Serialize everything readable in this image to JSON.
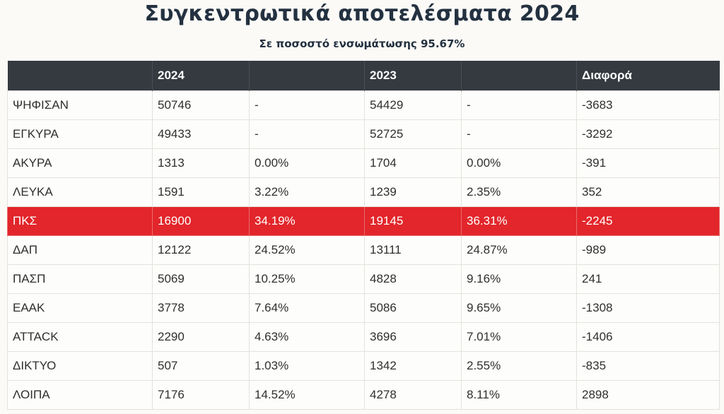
{
  "title": "Συγκεντρωτικά αποτελέσματα 2024",
  "subtitle": "Σε ποσοστό ενσωμάτωσης 95.67%",
  "colors": {
    "header_bg": "#353a40",
    "highlight": "#e2262b",
    "title_color": "#233140"
  },
  "table": {
    "headers": [
      "",
      "2024",
      "",
      "2023",
      "",
      "Διαφορά"
    ],
    "rows": [
      [
        "ΨΗΦΙΣΑΝ",
        "50746",
        "-",
        "54429",
        "-",
        "-3683"
      ],
      [
        "ΕΓΚΥΡΑ",
        "49433",
        "-",
        "52725",
        "-",
        "-3292"
      ],
      [
        "ΑΚΥΡΑ",
        "1313",
        "0.00%",
        "1704",
        "0.00%",
        "-391"
      ],
      [
        "ΛΕΥΚΑ",
        "1591",
        "3.22%",
        "1239",
        "2.35%",
        "352"
      ],
      [
        "ΠΚΣ",
        "16900",
        "34.19%",
        "19145",
        "36.31%",
        "-2245"
      ],
      [
        "ΔΑΠ",
        "12122",
        "24.52%",
        "13111",
        "24.87%",
        "-989"
      ],
      [
        "ΠΑΣΠ",
        "5069",
        "10.25%",
        "4828",
        "9.16%",
        "241"
      ],
      [
        "ΕΑΑΚ",
        "3778",
        "7.64%",
        "5086",
        "9.65%",
        "-1308"
      ],
      [
        "ATTACK",
        "2290",
        "4.63%",
        "3696",
        "7.01%",
        "-1406"
      ],
      [
        "ΔΙΚΤΥΟ",
        "507",
        "1.03%",
        "1342",
        "2.55%",
        "-835"
      ],
      [
        "ΛΟΙΠΑ",
        "7176",
        "14.52%",
        "4278",
        "8.11%",
        "2898"
      ]
    ],
    "highlight_row": 4
  }
}
